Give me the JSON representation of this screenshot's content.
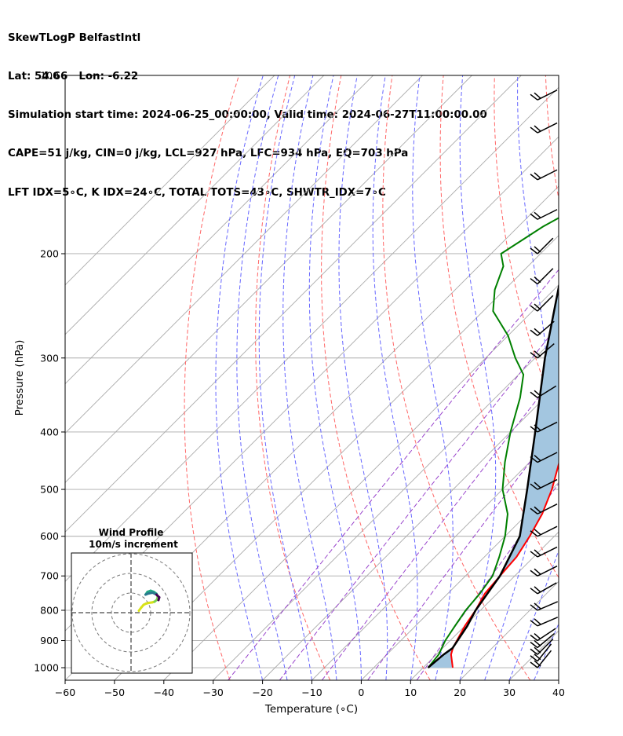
{
  "header": {
    "line1": "SkewTLogP BelfastIntl",
    "line2": "Lat: 54.66   Lon: -6.22",
    "line3": "Simulation start time: 2024-06-25_00:00:00, Valid time: 2024-06-27T11:00:00.00",
    "line4": "CAPE=51 j/kg, CIN=0 j/kg, LCL=927 hPa, LFC=934 hPa, EQ=703 hPa",
    "line5": "LFT IDX=5∘C, K IDX=24∘C, TOTAL TOTS=43∘C, SHWTR_IDX=7∘C"
  },
  "chart_data": {
    "type": "line",
    "xlabel": "Temperature (∘C)",
    "ylabel": "Pressure (hPa)",
    "xlim": [
      -60,
      40
    ],
    "ylim": [
      1050,
      100
    ],
    "x_ticks": [
      -60,
      -50,
      -40,
      -30,
      -20,
      -10,
      0,
      10,
      20,
      30,
      40
    ],
    "x_tick_labels": [
      "−60",
      "−50",
      "−40",
      "−30",
      "−20",
      "−10",
      "0",
      "10",
      "20",
      "30",
      "40"
    ],
    "p_ticks": [
      100,
      200,
      300,
      400,
      500,
      600,
      700,
      800,
      900,
      1000
    ],
    "p_tick_labels": [
      "100",
      "200",
      "300",
      "400",
      "500",
      "600",
      "700",
      "800",
      "900",
      "1000"
    ],
    "grid": true,
    "colors": {
      "temperature": "#ff0000",
      "dewpoint": "#008000",
      "parcel": "#000000",
      "area_fill": "#a3c6e0",
      "dry_adiabat": "#ff6666",
      "moist_adiabat": "#6666ff",
      "mixing_ratio": "#9944cc",
      "isotherm": "#aaaaaa"
    },
    "series": [
      {
        "points": [
          [
            16,
            1000
          ],
          [
            13,
            950
          ],
          [
            12,
            925
          ],
          [
            10,
            850
          ],
          [
            9,
            800
          ],
          [
            7.5,
            750
          ],
          [
            7,
            700
          ],
          [
            6.5,
            650
          ],
          [
            5,
            600
          ],
          [
            3,
            550
          ],
          [
            0,
            500
          ],
          [
            -4,
            450
          ],
          [
            -10,
            400
          ],
          [
            -16,
            350
          ],
          [
            -17,
            320
          ],
          [
            -15,
            300
          ],
          [
            -8,
            270
          ],
          [
            -5,
            250
          ],
          [
            -3,
            230
          ],
          [
            -2,
            210
          ],
          [
            1,
            190
          ],
          [
            3,
            180
          ],
          [
            4,
            170
          ],
          [
            5,
            160
          ],
          [
            6,
            150
          ],
          [
            7,
            140
          ],
          [
            8,
            130
          ],
          [
            9,
            120
          ],
          [
            10,
            110
          ],
          [
            9,
            100
          ]
        ]
      },
      {
        "points": [
          [
            11,
            1000
          ],
          [
            10.5,
            950
          ],
          [
            9,
            900
          ],
          [
            8,
            850
          ],
          [
            7,
            800
          ],
          [
            6.5,
            750
          ],
          [
            5.5,
            700
          ],
          [
            3,
            650
          ],
          [
            0,
            600
          ],
          [
            -4,
            550
          ],
          [
            -10,
            500
          ],
          [
            -15,
            450
          ],
          [
            -20,
            400
          ],
          [
            -25,
            350
          ],
          [
            -29,
            320
          ],
          [
            -34,
            300
          ],
          [
            -40,
            275
          ],
          [
            -48,
            250
          ],
          [
            -52,
            230
          ],
          [
            -55,
            210
          ],
          [
            -58,
            200
          ],
          [
            -55,
            180
          ],
          [
            -50,
            160
          ],
          [
            -42,
            140
          ],
          [
            -35,
            125
          ],
          [
            -27,
            110
          ],
          [
            -22,
            100
          ]
        ]
      },
      {
        "points": [
          [
            11,
            1000
          ],
          [
            11.5,
            950
          ],
          [
            12,
            927
          ],
          [
            10.5,
            850
          ],
          [
            9,
            800
          ],
          [
            7,
            700
          ],
          [
            3,
            600
          ],
          [
            -5,
            500
          ],
          [
            -15,
            400
          ],
          [
            -28,
            300
          ],
          [
            -45,
            200
          ],
          [
            -58,
            150
          ],
          [
            -75,
            100
          ]
        ]
      }
    ],
    "wind_barbs": [
      {
        "p": 1000,
        "u": 4,
        "v": 5
      },
      {
        "p": 975,
        "u": 4,
        "v": 5
      },
      {
        "p": 950,
        "u": 5,
        "v": 5
      },
      {
        "p": 925,
        "u": 6,
        "v": 5
      },
      {
        "p": 900,
        "u": 6,
        "v": 4
      },
      {
        "p": 850,
        "u": 7,
        "v": 3
      },
      {
        "p": 800,
        "u": 7,
        "v": 3
      },
      {
        "p": 750,
        "u": 7,
        "v": 4
      },
      {
        "p": 700,
        "u": 8,
        "v": 4
      },
      {
        "p": 650,
        "u": 8,
        "v": 4
      },
      {
        "p": 600,
        "u": 8,
        "v": 4
      },
      {
        "p": 550,
        "u": 8,
        "v": 4
      },
      {
        "p": 500,
        "u": 8,
        "v": 4
      },
      {
        "p": 450,
        "u": 8,
        "v": 4
      },
      {
        "p": 400,
        "u": 8,
        "v": 4
      },
      {
        "p": 350,
        "u": 8,
        "v": 5
      },
      {
        "p": 300,
        "u": 7,
        "v": 6
      },
      {
        "p": 275,
        "u": 7,
        "v": 6
      },
      {
        "p": 250,
        "u": 7,
        "v": 7
      },
      {
        "p": 225,
        "u": 7,
        "v": 7
      },
      {
        "p": 200,
        "u": 7,
        "v": 7
      },
      {
        "p": 175,
        "u": 8,
        "v": 4
      },
      {
        "p": 150,
        "u": 8,
        "v": 4
      },
      {
        "p": 125,
        "u": 8,
        "v": 4
      },
      {
        "p": 110,
        "u": 8,
        "v": 4
      }
    ]
  },
  "inset": {
    "title": "Wind Profile",
    "subtitle": "10m/s increment",
    "hodograph": [
      [
        2,
        0.5
      ],
      [
        2.6,
        1.3
      ],
      [
        3.2,
        2.0
      ],
      [
        3.8,
        2.3
      ],
      [
        4.5,
        2.5
      ],
      [
        5.3,
        2.6
      ],
      [
        6.0,
        2.8
      ],
      [
        6.6,
        3.3
      ],
      [
        6.8,
        4.0
      ],
      [
        6.5,
        4.8
      ],
      [
        5.8,
        5.3
      ],
      [
        5.0,
        5.6
      ],
      [
        4.2,
        5.3
      ],
      [
        3.7,
        4.6
      ],
      [
        4.5,
        4.9
      ],
      [
        5.5,
        5.1
      ],
      [
        6.5,
        4.6
      ],
      [
        7.2,
        3.9
      ],
      [
        7.0,
        3.2
      ]
    ]
  }
}
